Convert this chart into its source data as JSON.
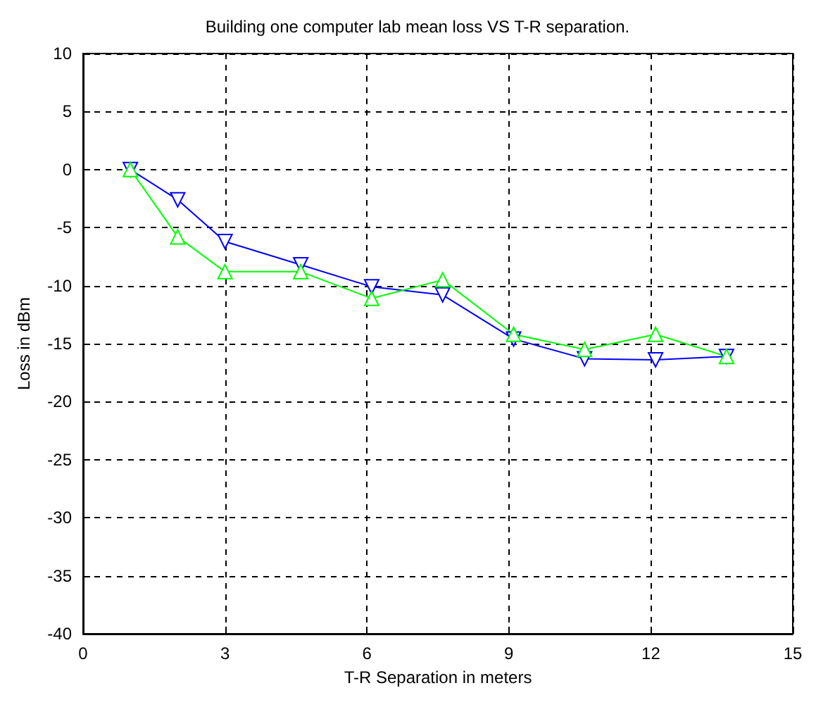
{
  "chart_data": {
    "type": "line",
    "title": "Building one computer lab mean loss VS T-R separation.",
    "xlabel": "T-R Separation in meters",
    "ylabel": "Loss in dBm",
    "xlim": [
      0,
      15
    ],
    "xticks": [
      0,
      3,
      6,
      9,
      12,
      15
    ],
    "ylim": [
      -40,
      10
    ],
    "yticks": [
      -40,
      -35,
      -30,
      -25,
      -20,
      -15,
      -10,
      -5,
      0,
      5,
      10
    ],
    "grid": true,
    "legend": false,
    "series": [
      {
        "color": "#0000ff",
        "marker": "triangle-down",
        "x": [
          1.0,
          2.0,
          3.0,
          4.6,
          6.1,
          7.6,
          9.1,
          10.6,
          12.1,
          13.6
        ],
        "values": [
          0,
          -2.6,
          -6.2,
          -8.2,
          -10.1,
          -10.8,
          -14.6,
          -16.3,
          -16.4,
          -16.1
        ]
      },
      {
        "color": "#00ff00",
        "marker": "triangle",
        "x": [
          1.0,
          2.0,
          3.0,
          4.6,
          6.1,
          7.6,
          9.1,
          10.6,
          12.1,
          13.6
        ],
        "values": [
          0,
          -5.8,
          -8.8,
          -8.8,
          -11.1,
          -9.5,
          -14.2,
          -15.5,
          -14.2,
          -16.1
        ]
      }
    ]
  }
}
